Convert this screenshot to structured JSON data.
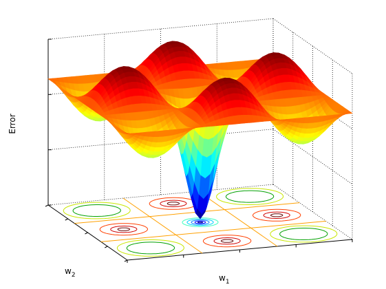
{
  "chart_data": {
    "type": "surface",
    "colormap": "jet",
    "xlabel": {
      "text": "w",
      "subscript": "1"
    },
    "ylabel": {
      "text": "w",
      "subscript": "2"
    },
    "zlabel": "Error"
  }
}
